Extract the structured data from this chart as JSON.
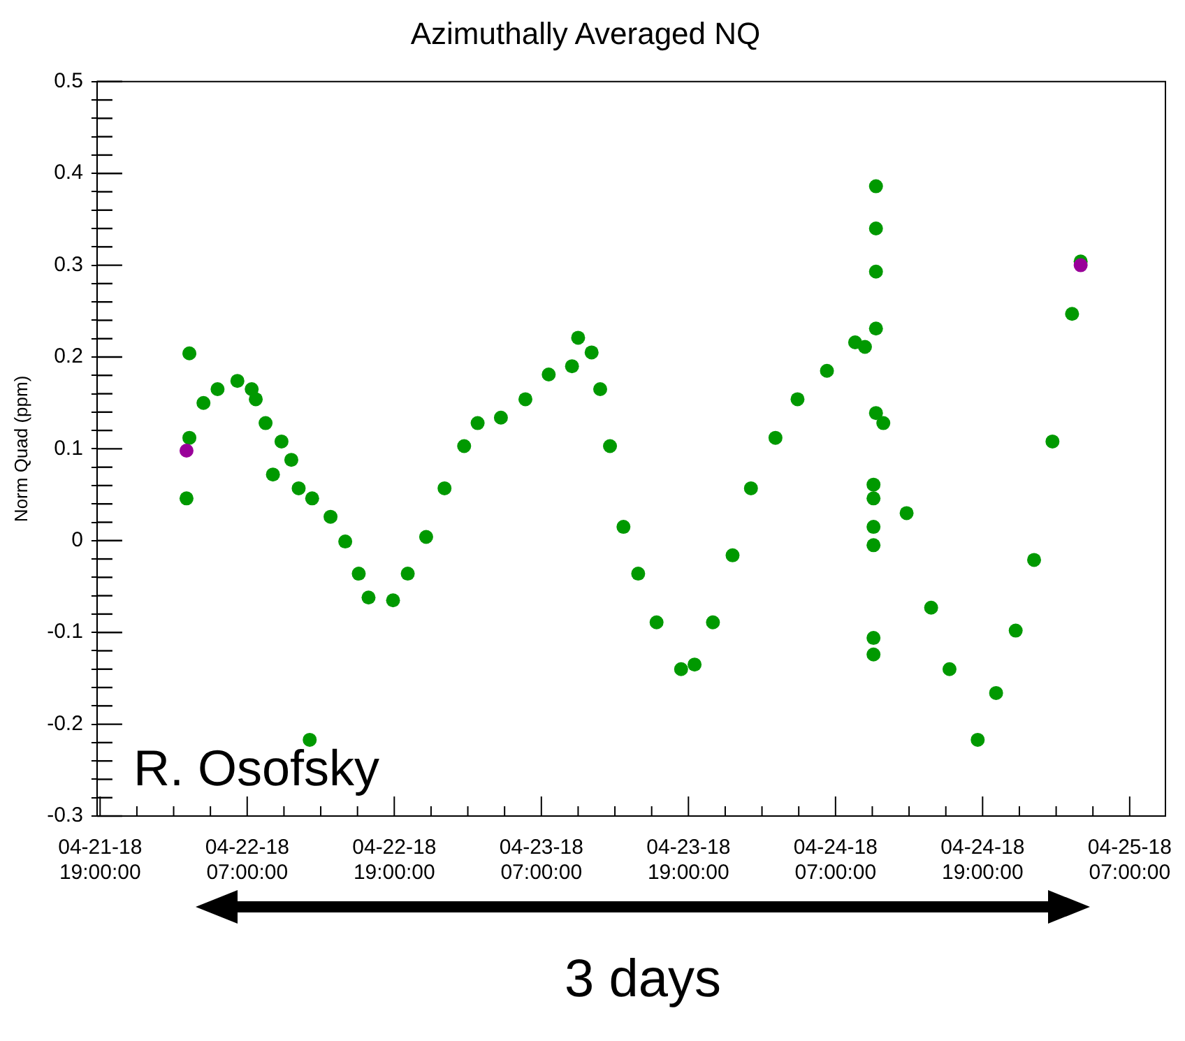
{
  "chart_data": {
    "type": "scatter",
    "title": "Azimuthally Averaged NQ",
    "ylabel": "Norm Quad (ppm)",
    "annotations": [
      "R. Osofsky",
      "3 days"
    ],
    "marker": "circle",
    "legend": false,
    "xlim": [
      "--04-21T18:45",
      "--04-25T09:55"
    ],
    "ylim": [
      -0.3,
      0.5
    ],
    "xticks": [
      {
        "value": "--04-21T19:00",
        "label": "04-21-18 19:00:00"
      },
      {
        "value": "--04-21T22:00",
        "label": null
      },
      {
        "value": "--04-22T01:00",
        "label": null
      },
      {
        "value": "--04-22T04:00",
        "label": null
      },
      {
        "value": "--04-22T07:00",
        "label": "04-22-18 07:00:00"
      },
      {
        "value": "--04-22T10:00",
        "label": null
      },
      {
        "value": "--04-22T13:00",
        "label": null
      },
      {
        "value": "--04-22T16:00",
        "label": null
      },
      {
        "value": "--04-22T19:00",
        "label": "04-22-18 19:00:00"
      },
      {
        "value": "--04-22T22:00",
        "label": null
      },
      {
        "value": "--04-23T01:00",
        "label": null
      },
      {
        "value": "--04-23T04:00",
        "label": null
      },
      {
        "value": "--04-23T07:00",
        "label": "04-23-18 07:00:00"
      },
      {
        "value": "--04-23T10:00",
        "label": null
      },
      {
        "value": "--04-23T13:00",
        "label": null
      },
      {
        "value": "--04-23T16:00",
        "label": null
      },
      {
        "value": "--04-23T19:00",
        "label": "04-23-18 19:00:00"
      },
      {
        "value": "--04-23T22:00",
        "label": null
      },
      {
        "value": "--04-24T01:00",
        "label": null
      },
      {
        "value": "--04-24T04:00",
        "label": null
      },
      {
        "value": "--04-24T07:00",
        "label": "04-24-18 07:00:00"
      },
      {
        "value": "--04-24T10:00",
        "label": null
      },
      {
        "value": "--04-24T13:00",
        "label": null
      },
      {
        "value": "--04-24T16:00",
        "label": null
      },
      {
        "value": "--04-24T19:00",
        "label": "04-24-18 19:00:00"
      },
      {
        "value": "--04-24T22:00",
        "label": null
      },
      {
        "value": "--04-25T01:00",
        "label": null
      },
      {
        "value": "--04-25T04:00",
        "label": null
      },
      {
        "value": "--04-25T07:00",
        "label": "04-25-18 07:00:00"
      }
    ],
    "yticks": [
      -0.3,
      {
        "value": -0.28,
        "label": null
      },
      {
        "value": -0.26,
        "label": null
      },
      {
        "value": -0.24,
        "label": null
      },
      {
        "value": -0.22,
        "label": null
      },
      -0.2,
      {
        "value": -0.18,
        "label": null
      },
      {
        "value": -0.16,
        "label": null
      },
      {
        "value": -0.14,
        "label": null
      },
      {
        "value": -0.12,
        "label": null
      },
      -0.1,
      {
        "value": -0.08,
        "label": null
      },
      {
        "value": -0.06,
        "label": null
      },
      {
        "value": -0.04,
        "label": null
      },
      {
        "value": -0.02,
        "label": null
      },
      0,
      {
        "value": 0.02,
        "label": null
      },
      {
        "value": 0.04,
        "label": null
      },
      {
        "value": 0.06,
        "label": null
      },
      {
        "value": 0.08,
        "label": null
      },
      0.1,
      {
        "value": 0.12,
        "label": null
      },
      {
        "value": 0.14,
        "label": null
      },
      {
        "value": 0.16,
        "label": null
      },
      {
        "value": 0.18,
        "label": null
      },
      0.2,
      {
        "value": 0.22,
        "label": null
      },
      {
        "value": 0.24,
        "label": null
      },
      {
        "value": 0.26,
        "label": null
      },
      {
        "value": 0.28,
        "label": null
      },
      0.3,
      {
        "value": 0.32,
        "label": null
      },
      {
        "value": 0.34,
        "label": null
      },
      {
        "value": 0.36,
        "label": null
      },
      {
        "value": 0.38,
        "label": null
      },
      0.4,
      {
        "value": 0.42,
        "label": null
      },
      {
        "value": 0.44,
        "label": null
      },
      {
        "value": 0.46,
        "label": null
      },
      {
        "value": 0.48,
        "label": null
      },
      0.5
    ],
    "series": [
      {
        "color": "#009900",
        "x": [
          "--04-22T02:03",
          "--04-22T02:17",
          "--04-22T02:17",
          "--04-22T03:26",
          "--04-22T04:35",
          "--04-22T06:12",
          "--04-22T07:22",
          "--04-22T07:42",
          "--04-22T08:30",
          "--04-22T09:06",
          "--04-22T09:48",
          "--04-22T10:36",
          "--04-22T11:12",
          "--04-22T12:06",
          "--04-22T12:18",
          "--04-22T13:48",
          "--04-22T15:00",
          "--04-22T16:06",
          "--04-22T16:54",
          "--04-22T18:54",
          "--04-22T20:06",
          "--04-22T21:36",
          "--04-22T23:06",
          "--04-23T00:42",
          "--04-23T01:48",
          "--04-23T03:42",
          "--04-23T05:42",
          "--04-23T07:36",
          "--04-23T09:30",
          "--04-23T10:00",
          "--04-23T11:06",
          "--04-23T11:48",
          "--04-23T12:36",
          "--04-23T13:42",
          "--04-23T14:54",
          "--04-23T16:24",
          "--04-23T18:24",
          "--04-23T19:30",
          "--04-23T21:00",
          "--04-23T22:36",
          "--04-24T00:06",
          "--04-24T02:06",
          "--04-24T03:54",
          "--04-24T06:18",
          "--04-24T08:36",
          "--04-24T09:24",
          "--04-24T10:18",
          "--04-24T10:18",
          "--04-24T10:18",
          "--04-24T10:18",
          "--04-24T10:18",
          "--04-24T10:06",
          "--04-24T10:06",
          "--04-24T10:06",
          "--04-24T10:06",
          "--04-24T10:06",
          "--04-24T10:06",
          "--04-24T10:54",
          "--04-24T12:48",
          "--04-24T14:48",
          "--04-24T16:18",
          "--04-24T18:36",
          "--04-24T20:06",
          "--04-24T21:42",
          "--04-24T23:12",
          "--04-25T00:42",
          "--04-25T02:18",
          "--04-25T03:00"
        ],
        "values": [
          0.046,
          0.204,
          0.112,
          0.15,
          0.165,
          0.174,
          0.165,
          0.154,
          0.128,
          0.072,
          0.108,
          0.088,
          0.057,
          -0.217,
          0.046,
          0.026,
          -0.001,
          -0.036,
          -0.062,
          -0.065,
          -0.036,
          0.004,
          0.057,
          0.103,
          0.128,
          0.134,
          0.154,
          0.181,
          0.19,
          0.221,
          0.205,
          0.165,
          0.103,
          0.015,
          -0.036,
          -0.089,
          -0.14,
          -0.135,
          -0.089,
          -0.016,
          0.057,
          0.112,
          0.154,
          0.185,
          0.216,
          0.211,
          0.386,
          0.34,
          0.293,
          0.231,
          0.139,
          0.061,
          0.046,
          0.015,
          -0.005,
          -0.106,
          -0.124,
          0.128,
          0.03,
          -0.073,
          -0.14,
          -0.217,
          -0.166,
          -0.098,
          -0.021,
          0.108,
          0.247,
          0.304
        ]
      },
      {
        "color": "#990099",
        "x": [
          "--04-22T02:03",
          "--04-25T03:00"
        ],
        "values": [
          0.098,
          0.3
        ]
      }
    ]
  }
}
